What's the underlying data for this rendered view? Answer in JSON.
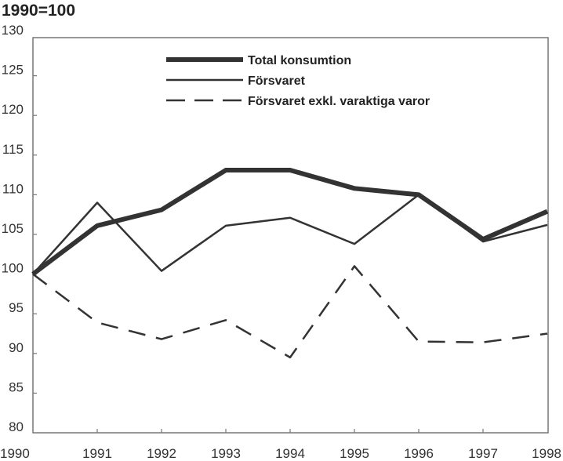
{
  "chart_data": {
    "type": "line",
    "title": "1990=100",
    "xlabel": "",
    "ylabel": "",
    "x": [
      1990,
      1991,
      1992,
      1993,
      1994,
      1995,
      1996,
      1997,
      1998
    ],
    "ylim": [
      80,
      130
    ],
    "yticks": [
      80,
      85,
      90,
      95,
      100,
      105,
      110,
      115,
      120,
      125,
      130
    ],
    "legend_position": "top-center",
    "series": [
      {
        "name": "Total konsumtion",
        "style": "thick",
        "values": [
          100,
          106.1,
          108.1,
          113.1,
          113.1,
          110.8,
          110.0,
          104.4,
          107.9
        ]
      },
      {
        "name": "Försvaret",
        "style": "thin",
        "values": [
          100,
          109.0,
          100.4,
          106.1,
          107.1,
          103.8,
          110.0,
          104.1,
          106.2
        ]
      },
      {
        "name": "Försvaret exkl. varaktiga varor",
        "style": "dashed",
        "values": [
          100,
          93.9,
          91.8,
          94.2,
          89.5,
          101.0,
          91.5,
          91.4,
          92.5
        ]
      }
    ],
    "colors": {
      "line": "#333333",
      "axis": "#777777"
    }
  }
}
